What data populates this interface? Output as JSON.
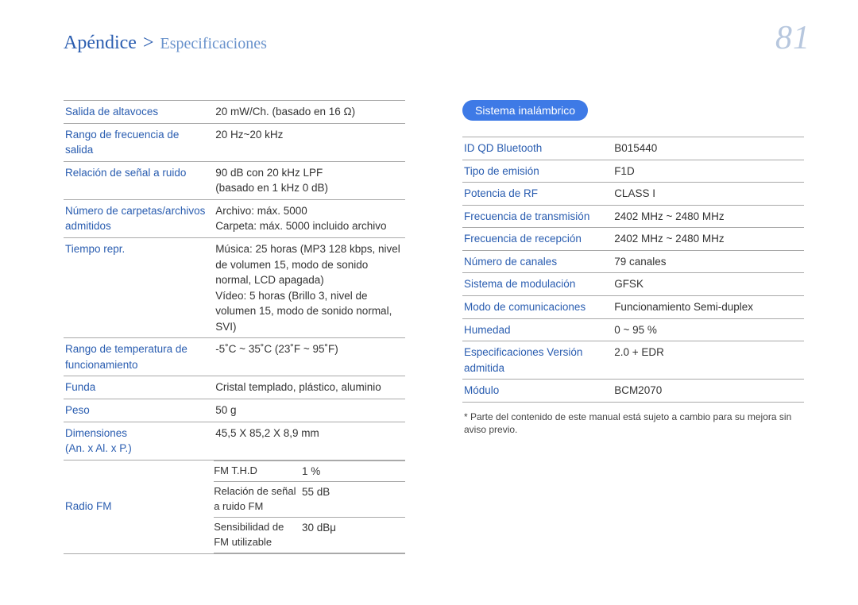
{
  "header": {
    "breadcrumb_main": "Apéndice",
    "breadcrumb_sep": ">",
    "breadcrumb_sub": "Especificaciones",
    "page_number": "81"
  },
  "left_rows": [
    {
      "key": "Salida de altavoces",
      "val": "20 mW/Ch. (basado en 16 Ω)"
    },
    {
      "key": "Rango de frecuencia de salida",
      "val": "20 Hz~20 kHz"
    },
    {
      "key": "Relación de señal a ruido",
      "val": "90 dB con 20 kHz LPF\n(basado en 1 kHz 0 dB)"
    },
    {
      "key": "Número de carpetas/archivos admitidos",
      "val": "Archivo: máx. 5000\nCarpeta: máx. 5000 incluido archivo"
    },
    {
      "key": "Tiempo repr.",
      "val": "Música: 25 horas (MP3 128 kbps, nivel de volumen 15, modo de sonido normal, LCD apagada)\nVídeo: 5 horas (Brillo 3, nivel de volumen 15, modo de sonido normal, SVI)"
    },
    {
      "key": "Rango de temperatura de funcionamiento",
      "val": "-5˚C ~ 35˚C (23˚F ~ 95˚F)"
    },
    {
      "key": "Funda",
      "val": "Cristal templado, plástico, aluminio"
    },
    {
      "key": "Peso",
      "val": "50 g"
    },
    {
      "key": "Dimensiones\n(An. x Al. x P.)",
      "val": "45,5 X 85,2 X 8,9 mm"
    }
  ],
  "radio_fm": {
    "key": "Radio FM",
    "sub": [
      {
        "k": "FM T.H.D",
        "v": "1 %"
      },
      {
        "k": "Relación de señal a ruido FM",
        "v": "55 dB"
      },
      {
        "k": "Sensibilidad de FM utilizable",
        "v": "30 dBμ"
      }
    ]
  },
  "right_title": "Sistema inalámbrico",
  "right_rows": [
    {
      "key": "ID QD Bluetooth",
      "val": "B015440"
    },
    {
      "key": "Tipo de emisión",
      "val": "F1D"
    },
    {
      "key": "Potencia de RF",
      "val": "CLASS I"
    },
    {
      "key": "Frecuencia de transmisión",
      "val": "2402 MHz ~ 2480 MHz"
    },
    {
      "key": "Frecuencia de recepción",
      "val": "2402 MHz ~ 2480 MHz"
    },
    {
      "key": "Número de canales",
      "val": "79 canales"
    },
    {
      "key": "Sistema de modulación",
      "val": "GFSK"
    },
    {
      "key": "Modo de comunicaciones",
      "val": "Funcionamiento Semi-duplex"
    },
    {
      "key": "Humedad",
      "val": "0 ~ 95 %"
    },
    {
      "key": "Especificaciones Versión admitida",
      "val": "2.0 + EDR"
    },
    {
      "key": "Módulo",
      "val": "BCM2070"
    }
  ],
  "footnote": "* Parte del contenido de este manual está sujeto a cambio para su mejora sin aviso previo."
}
